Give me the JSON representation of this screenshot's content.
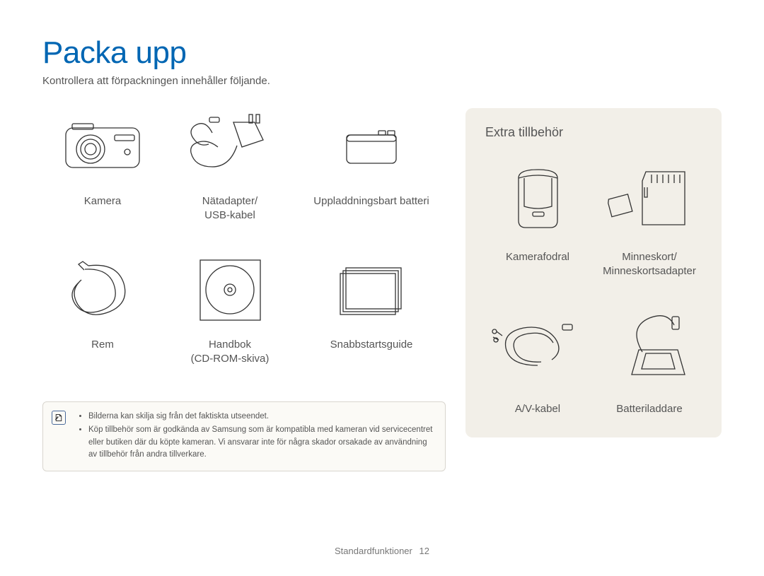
{
  "title": "Packa upp",
  "subtitle": "Kontrollera att förpackningen innehåller följande.",
  "colors": {
    "title": "#0066b3",
    "text": "#555555",
    "background": "#ffffff",
    "optional_panel_bg": "#f2efe8",
    "note_border": "#d9d6cf",
    "note_bg": "#fbfaf6",
    "icon_stroke": "#333333",
    "note_icon_border": "#4a6a9a"
  },
  "typography": {
    "title_fontsize_pt": 33,
    "subtitle_fontsize_pt": 11,
    "label_fontsize_pt": 11,
    "note_fontsize_pt": 9,
    "footer_fontsize_pt": 10
  },
  "included": [
    {
      "label": "Kamera",
      "icon": "camera"
    },
    {
      "label": "Nätadapter/\nUSB-kabel",
      "icon": "adapter-cable"
    },
    {
      "label": "Uppladdningsbart batteri",
      "icon": "battery"
    },
    {
      "label": "Rem",
      "icon": "strap"
    },
    {
      "label": "Handbok\n(CD-ROM-skiva)",
      "icon": "cd"
    },
    {
      "label": "Snabbstartsguide",
      "icon": "booklet"
    }
  ],
  "optional_title": "Extra tillbehör",
  "optional": [
    {
      "label": "Kamerafodral",
      "icon": "case"
    },
    {
      "label": "Minneskort/\nMinneskortsadapter",
      "icon": "sd-card"
    },
    {
      "label": "A/V-kabel",
      "icon": "av-cable"
    },
    {
      "label": "Batteriladdare",
      "icon": "charger"
    }
  ],
  "notes": [
    "Bilderna kan skilja sig från det faktiskta utseendet.",
    "Köp tillbehör som är godkända av Samsung som är kompatibla med kameran vid servicecentret eller butiken där du köpte kameran. Vi ansvarar inte för några skador orsakade av användning av tillbehör från andra tillverkare."
  ],
  "footer_section": "Standardfunktioner",
  "footer_page": "12"
}
